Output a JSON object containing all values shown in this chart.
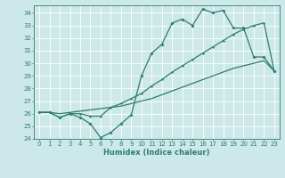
{
  "xlabel": "Humidex (Indice chaleur)",
  "ylabel": "",
  "xlim": [
    -0.5,
    23.5
  ],
  "ylim": [
    24,
    34.6
  ],
  "yticks": [
    24,
    25,
    26,
    27,
    28,
    29,
    30,
    31,
    32,
    33,
    34
  ],
  "xticks": [
    0,
    1,
    2,
    3,
    4,
    5,
    6,
    7,
    8,
    9,
    10,
    11,
    12,
    13,
    14,
    15,
    16,
    17,
    18,
    19,
    20,
    21,
    22,
    23
  ],
  "bg_color": "#cce8e8",
  "grid_color": "#ffffff",
  "line_color": "#2e7d6e",
  "series1": [
    26.1,
    26.1,
    25.7,
    26.0,
    25.7,
    25.2,
    24.1,
    24.5,
    25.2,
    25.9,
    29.0,
    30.8,
    31.5,
    33.2,
    33.5,
    33.0,
    34.3,
    34.0,
    34.2,
    32.8,
    32.8,
    30.5,
    30.5,
    29.4
  ],
  "series2": [
    26.1,
    26.1,
    25.7,
    26.0,
    26.0,
    25.8,
    25.8,
    26.5,
    26.8,
    27.2,
    27.6,
    28.2,
    28.7,
    29.3,
    29.8,
    30.3,
    30.8,
    31.3,
    31.8,
    32.3,
    32.7,
    33.0,
    33.2,
    29.4
  ],
  "series3": [
    26.1,
    26.1,
    26.0,
    26.1,
    26.2,
    26.3,
    26.4,
    26.5,
    26.6,
    26.8,
    27.0,
    27.2,
    27.5,
    27.8,
    28.1,
    28.4,
    28.7,
    29.0,
    29.3,
    29.6,
    29.8,
    30.0,
    30.2,
    29.4
  ]
}
